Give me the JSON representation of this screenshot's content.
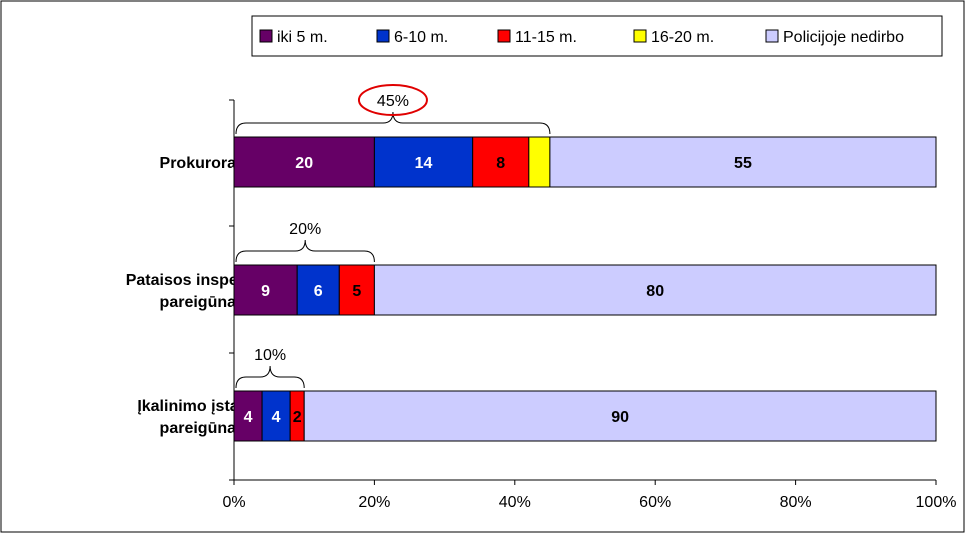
{
  "chart_data": {
    "type": "bar",
    "orientation": "horizontal",
    "stacked": true,
    "categories": [
      "Prokurorai",
      "Pataisos inspekcijų pareigūnai",
      "Įkalinimo įstaigų pareigūnai"
    ],
    "category_lines": [
      [
        "Prokurorai"
      ],
      [
        "Pataisos inspekcijų",
        "pareigūnai"
      ],
      [
        "Įkalinimo įstaigų",
        "pareigūnai"
      ]
    ],
    "series": [
      {
        "name": "iki 5 m.",
        "color": "#660066",
        "values": [
          20,
          9,
          4
        ],
        "labels": [
          "20",
          "9",
          "4"
        ]
      },
      {
        "name": "6-10 m.",
        "color": "#0033cc",
        "values": [
          14,
          6,
          4
        ],
        "labels": [
          "14",
          "6",
          "4"
        ]
      },
      {
        "name": "11-15 m.",
        "color": "#ff0000",
        "values": [
          8,
          5,
          2
        ],
        "labels": [
          "8",
          "5",
          "2"
        ]
      },
      {
        "name": "16-20 m.",
        "color": "#ffff00",
        "values": [
          3,
          0,
          0
        ],
        "labels": [
          "",
          "",
          ""
        ]
      },
      {
        "name": "Policijoje nedirbo",
        "color": "#ccccff",
        "values": [
          55,
          80,
          90
        ],
        "labels": [
          "55",
          "80",
          "90"
        ]
      }
    ],
    "xlim": [
      0,
      100
    ],
    "x_ticks": [
      "0%",
      "20%",
      "40%",
      "60%",
      "80%",
      "100%"
    ],
    "legend_position": "top",
    "annotations": [
      {
        "category": "Prokurorai",
        "text": "45%",
        "value": 45,
        "circled": true
      },
      {
        "category": "Pataisos inspekcijų pareigūnai",
        "text": "20%",
        "value": 20,
        "circled": false
      },
      {
        "category": "Įkalinimo įstaigų pareigūnai",
        "text": "10%",
        "value": 10,
        "circled": false
      }
    ]
  }
}
